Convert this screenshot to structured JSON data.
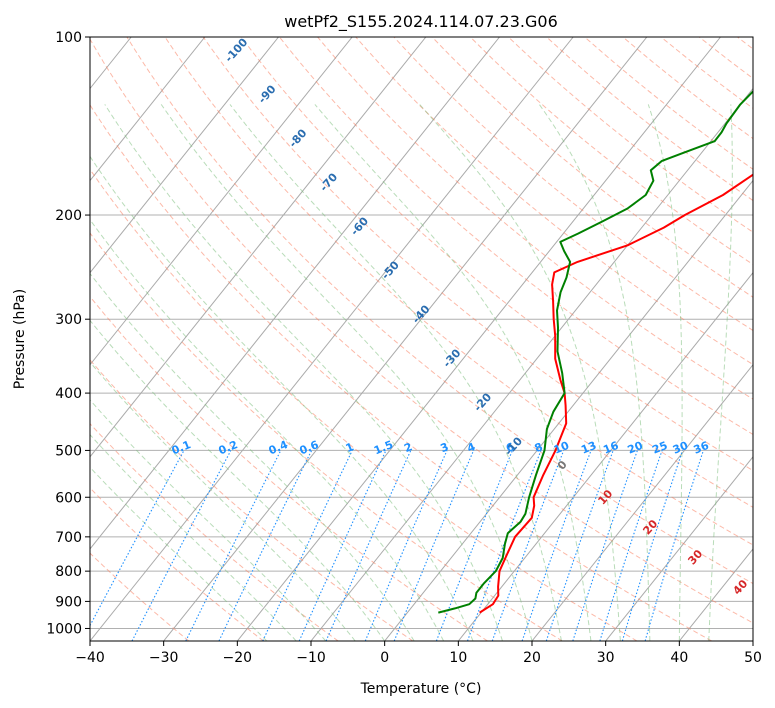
{
  "chart_data": {
    "type": "line",
    "title": "wetPf2_S155.2024.114.07.23.G06",
    "xlabel": "Temperature (°C)",
    "ylabel": "Pressure (hPa)",
    "xlim": [
      -40,
      50
    ],
    "ylim": [
      1050,
      100
    ],
    "y_scale": "log",
    "x_ticks": [
      "−40",
      "−30",
      "−20",
      "−10",
      "0",
      "10",
      "20",
      "30",
      "40",
      "50"
    ],
    "x_tick_values": [
      -40,
      -30,
      -20,
      -10,
      0,
      10,
      20,
      30,
      40,
      50
    ],
    "y_ticks": [
      "100",
      "200",
      "300",
      "400",
      "500",
      "600",
      "700",
      "800",
      "900",
      "1000"
    ],
    "y_tick_values": [
      100,
      200,
      300,
      400,
      500,
      600,
      700,
      800,
      900,
      1000
    ],
    "grid": true,
    "series": [
      {
        "color": "#ff0000",
        "points": [
          {
            "p": 940,
            "t": 9.8
          },
          {
            "p": 910,
            "t": 10.7
          },
          {
            "p": 880,
            "t": 10.5
          },
          {
            "p": 850,
            "t": 9.5
          },
          {
            "p": 800,
            "t": 8.0
          },
          {
            "p": 750,
            "t": 7.2
          },
          {
            "p": 700,
            "t": 6.4
          },
          {
            "p": 650,
            "t": 6.6
          },
          {
            "p": 620,
            "t": 5.6
          },
          {
            "p": 600,
            "t": 4.6
          },
          {
            "p": 550,
            "t": 3.5
          },
          {
            "p": 500,
            "t": 2.5
          },
          {
            "p": 450,
            "t": 1.0
          },
          {
            "p": 420,
            "t": -1.0
          },
          {
            "p": 400,
            "t": -2.5
          },
          {
            "p": 380,
            "t": -4.5
          },
          {
            "p": 350,
            "t": -7.5
          },
          {
            "p": 320,
            "t": -10.0
          },
          {
            "p": 300,
            "t": -12.0
          },
          {
            "p": 280,
            "t": -14.0
          },
          {
            "p": 262,
            "t": -16.0
          },
          {
            "p": 250,
            "t": -17.0
          },
          {
            "p": 240,
            "t": -15.0
          },
          {
            "p": 225,
            "t": -10.0
          },
          {
            "p": 210,
            "t": -7.0
          },
          {
            "p": 200,
            "t": -5.5
          },
          {
            "p": 185,
            "t": -2.5
          },
          {
            "p": 170,
            "t": -0.5
          },
          {
            "p": 160,
            "t": 0.5
          },
          {
            "p": 150,
            "t": 0.7
          },
          {
            "p": 140,
            "t": 1.0
          },
          {
            "p": 130,
            "t": 1.8
          },
          {
            "p": 120,
            "t": 2.5
          },
          {
            "p": 110,
            "t": 4.5
          },
          {
            "p": 100,
            "t": 6.5
          }
        ]
      },
      {
        "color": "#008000",
        "points": [
          {
            "p": 940,
            "t": 4.2
          },
          {
            "p": 925,
            "t": 6.0
          },
          {
            "p": 910,
            "t": 7.5
          },
          {
            "p": 890,
            "t": 7.7
          },
          {
            "p": 870,
            "t": 7.2
          },
          {
            "p": 840,
            "t": 7.2
          },
          {
            "p": 800,
            "t": 7.5
          },
          {
            "p": 760,
            "t": 7.0
          },
          {
            "p": 720,
            "t": 5.8
          },
          {
            "p": 690,
            "t": 5.0
          },
          {
            "p": 660,
            "t": 5.5
          },
          {
            "p": 640,
            "t": 5.3
          },
          {
            "p": 600,
            "t": 4.0
          },
          {
            "p": 550,
            "t": 2.5
          },
          {
            "p": 500,
            "t": 1.0
          },
          {
            "p": 460,
            "t": -1.0
          },
          {
            "p": 430,
            "t": -2.0
          },
          {
            "p": 400,
            "t": -2.5
          },
          {
            "p": 370,
            "t": -5.0
          },
          {
            "p": 340,
            "t": -8.0
          },
          {
            "p": 310,
            "t": -10.5
          },
          {
            "p": 290,
            "t": -12.5
          },
          {
            "p": 270,
            "t": -14.0
          },
          {
            "p": 255,
            "t": -14.8
          },
          {
            "p": 240,
            "t": -16.0
          },
          {
            "p": 230,
            "t": -18.0
          },
          {
            "p": 222,
            "t": -19.5
          },
          {
            "p": 215,
            "t": -18.0
          },
          {
            "p": 205,
            "t": -16.0
          },
          {
            "p": 195,
            "t": -14.0
          },
          {
            "p": 185,
            "t": -13.0
          },
          {
            "p": 175,
            "t": -13.5
          },
          {
            "p": 168,
            "t": -15.0
          },
          {
            "p": 162,
            "t": -14.5
          },
          {
            "p": 157,
            "t": -12.5
          },
          {
            "p": 150,
            "t": -9.5
          },
          {
            "p": 145,
            "t": -9.5
          },
          {
            "p": 140,
            "t": -9.8
          },
          {
            "p": 130,
            "t": -10.0
          },
          {
            "p": 120,
            "t": -9.5
          },
          {
            "p": 110,
            "t": -8.5
          },
          {
            "p": 100,
            "t": -6.5
          }
        ]
      }
    ],
    "dry_adiabat_labels": [
      "-100",
      "-90",
      "-80",
      "-70",
      "-60",
      "-50",
      "-40",
      "-30",
      "-20",
      "-10",
      "0",
      "10",
      "20",
      "30",
      "40"
    ],
    "mixing_ratio_labels": [
      "0.1",
      "0.2",
      "0.4",
      "0.6",
      "1",
      "1.5",
      "2",
      "3",
      "4",
      "6",
      "8",
      "10",
      "13",
      "16",
      "20",
      "25",
      "30",
      "36"
    ]
  },
  "colors": {
    "temperature": "#ff0000",
    "dewpoint": "#008000",
    "dry_adiabats": "#fa8060",
    "moist_adiabats": "#7fbf7f",
    "mixing_ratio": "#1e90ff",
    "isotherms": "#999999"
  }
}
